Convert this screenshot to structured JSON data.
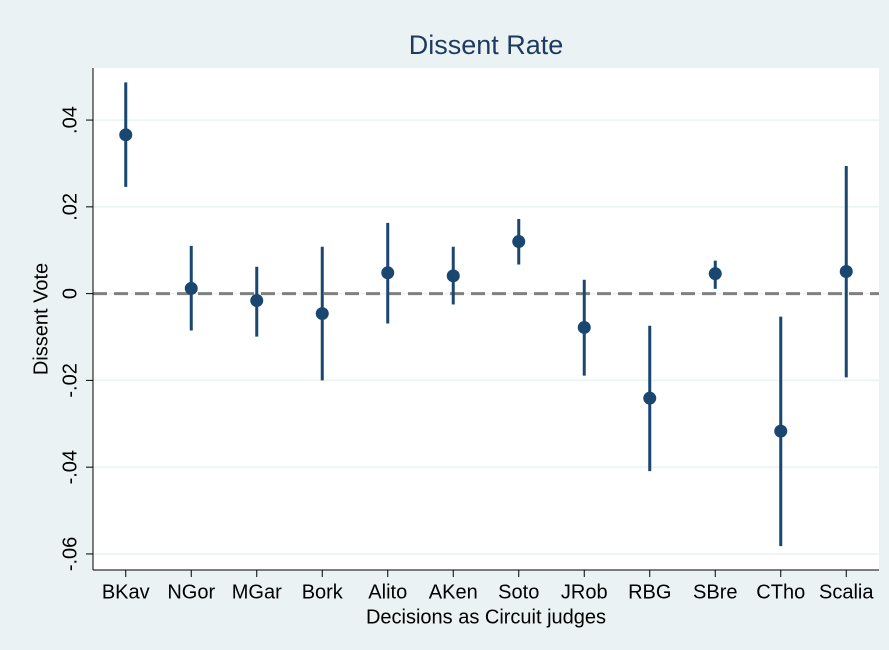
{
  "chart_data": {
    "type": "point-range",
    "title": "Dissent Rate",
    "x_label": "Decisions as Circuit judges",
    "y_label": "Dissent Vote",
    "categories": [
      "BKav",
      "NGor",
      "MGar",
      "Bork",
      "Alito",
      "AKen",
      "Soto",
      "JRob",
      "RBG",
      "SBre",
      "CTho",
      "Scalia"
    ],
    "values": [
      0.0366,
      0.0012,
      -0.0016,
      -0.0046,
      0.0048,
      0.0041,
      0.012,
      -0.0078,
      -0.0241,
      0.0046,
      -0.0317,
      0.0051
    ],
    "lower": [
      0.0246,
      -0.0085,
      -0.0099,
      -0.02,
      -0.0069,
      -0.0025,
      0.0067,
      -0.0189,
      -0.0409,
      0.0011,
      -0.0582,
      -0.0193
    ],
    "upper": [
      0.0487,
      0.011,
      0.0062,
      0.0108,
      0.0163,
      0.0108,
      0.0172,
      0.0032,
      -0.0074,
      0.0076,
      -0.0053,
      0.0294
    ],
    "color": "#1a476f",
    "ylim": [
      -0.0637,
      0.052
    ],
    "yticks": [
      {
        "value": -0.06,
        "label": "-.06"
      },
      {
        "value": -0.04,
        "label": "-.04"
      },
      {
        "value": -0.02,
        "label": "-.02"
      },
      0,
      {
        "value": 0.02,
        "label": ".02"
      },
      {
        "value": 0.04,
        "label": ".04"
      }
    ],
    "reference_line": 0,
    "grid": true
  }
}
